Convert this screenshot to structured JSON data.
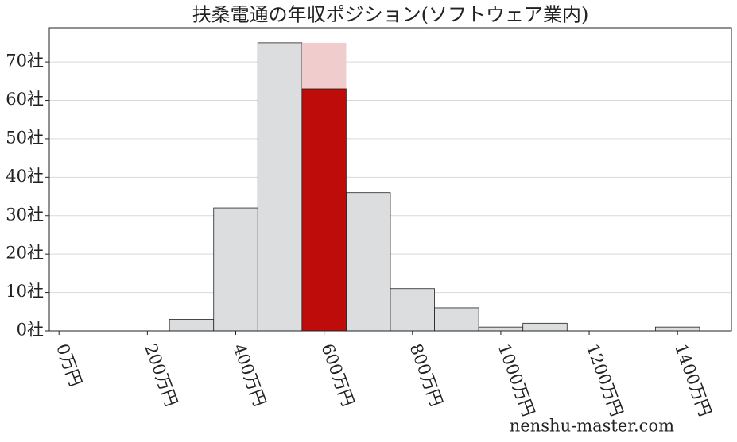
{
  "chart_data": {
    "type": "histogram",
    "title": "扶桑電通の年収ポジション(ソフトウェア業内)",
    "bins": [
      250,
      350,
      450,
      550,
      650,
      750,
      850,
      950,
      1050,
      1150,
      1250,
      1350,
      1450
    ],
    "series": [
      {
        "color": "#dcdddf",
        "values": [
          3,
          32,
          75,
          null,
          36,
          11,
          6,
          1,
          2,
          0,
          0,
          1
        ]
      },
      {
        "color": "#f0cccc",
        "values": [
          null,
          null,
          null,
          75,
          null,
          null,
          null,
          null,
          null,
          null,
          null,
          null
        ]
      },
      {
        "color": "#be0c0a",
        "values": [
          null,
          null,
          null,
          63,
          null,
          null,
          null,
          null,
          null,
          null,
          null,
          null
        ]
      }
    ],
    "xlim": [
      -22,
      1522
    ],
    "xticks": [
      {
        "value": 0,
        "label": "0万円"
      },
      {
        "value": 200,
        "label": "200万円"
      },
      {
        "value": 400,
        "label": "400万円"
      },
      {
        "value": 600,
        "label": "600万円"
      },
      {
        "value": 800,
        "label": "800万円"
      },
      {
        "value": 1000,
        "label": "1000万円"
      },
      {
        "value": 1200,
        "label": "1200万円"
      },
      {
        "value": 1400,
        "label": "1400万円"
      }
    ],
    "ylim": [
      0,
      78.9
    ],
    "yticks": [
      {
        "value": 0,
        "label": "0社"
      },
      {
        "value": 10,
        "label": "10社"
      },
      {
        "value": 20,
        "label": "20社"
      },
      {
        "value": 30,
        "label": "30社"
      },
      {
        "value": 40,
        "label": "40社"
      },
      {
        "value": 50,
        "label": "50社"
      },
      {
        "value": 60,
        "label": "60社"
      },
      {
        "value": 70,
        "label": "70社"
      }
    ],
    "grid": true,
    "watermark": "nenshu-master.com"
  }
}
